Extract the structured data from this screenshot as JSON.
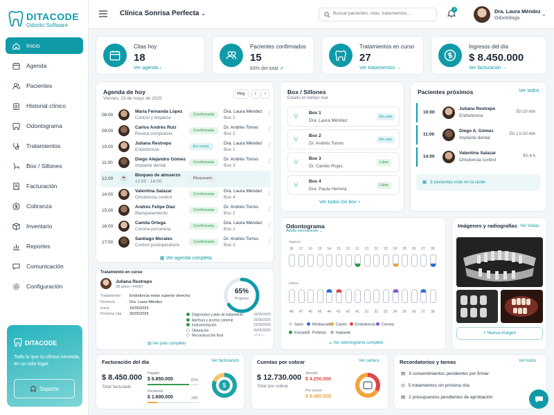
{
  "brand": {
    "name": "DITACODE",
    "sub": "Odonto Software"
  },
  "nav": [
    "Inicio",
    "Agenda",
    "Pacientes",
    "Historial clínico",
    "Odontograma",
    "Tratamientos",
    "Box / Sillones",
    "Facturación",
    "Cobranza",
    "Inventario",
    "Reportes",
    "Comunicación",
    "Configuración"
  ],
  "promo": {
    "name": "DITACODE",
    "text": "Todo lo que tu clínica necesita, en un solo lugar.",
    "button": "Soporte"
  },
  "header": {
    "clinic": "Clínica Sonrisa Perfecta",
    "search_placeholder": "Buscar pacientes, citas, tratamientos...",
    "badge": "3",
    "user": "Dra. Laura Méndez",
    "role": "Odontóloga"
  },
  "kpis": [
    {
      "title": "Citas hoy",
      "value": "18",
      "link": "Ver agenda",
      "arrow": "›"
    },
    {
      "title": "Pacientes confirmados",
      "value": "15",
      "link": "83% del total",
      "arrow": "↗"
    },
    {
      "title": "Tratamientos en curso",
      "value": "27",
      "link": "Ver tratamientos",
      "arrow": "→"
    },
    {
      "title": "Ingresos del día",
      "value": "$ 8.450.000",
      "link": "Ver facturación",
      "arrow": "→"
    }
  ],
  "agenda": {
    "title": "Agenda de hoy",
    "date": "Viernes, 23 de mayo de 2025",
    "today": "Hoy",
    "link": "Ver agenda completa",
    "rows": [
      {
        "time": "08:00",
        "name": "María Fernanda López",
        "proc": "Control y limpieza",
        "status": "Confirmada",
        "doctor": "Dra. Laura Méndez",
        "box": "Box 1"
      },
      {
        "time": "09:00",
        "name": "Carlos Andrés Ruiz",
        "proc": "Resina compuesta",
        "status": "Confirmada",
        "doctor": "Dr. Andrés Torres",
        "box": "Box 2"
      },
      {
        "time": "10:00",
        "name": "Juliana Restrepo",
        "proc": "Endodoncia",
        "status": "En curso",
        "doctor": "Dra. Laura Méndez",
        "box": "Box 1"
      },
      {
        "time": "11:00",
        "name": "Diego Alejandro Gómez",
        "proc": "Implante dental",
        "status": "Confirmada",
        "doctor": "Dr. Andrés Torres",
        "box": "Box 3"
      },
      {
        "time": "12:00",
        "name": "Bloqueo de almuerzo",
        "proc": "12:00 - 14:00",
        "status": "Bloqueado",
        "doctor": "",
        "box": ""
      },
      {
        "time": "14:00",
        "name": "Valentina Salazar",
        "proc": "Ortodoncia control",
        "status": "Confirmada",
        "doctor": "Dra. Laura Méndez",
        "box": "Box 4"
      },
      {
        "time": "15:00",
        "name": "Andrés Felipe Díaz",
        "proc": "Blanqueamiento",
        "status": "Confirmada",
        "doctor": "Dr. Andrés Torres",
        "box": "Box 2"
      },
      {
        "time": "16:00",
        "name": "Camila Ortega",
        "proc": "Corona porcelana",
        "status": "Confirmada",
        "doctor": "Dra. Laura Méndez",
        "box": "Box 1"
      },
      {
        "time": "17:00",
        "name": "Santiago Morales",
        "proc": "Control postoperatorio",
        "status": "Confirmada",
        "doctor": "Dr. Andrés Torres",
        "box": "Box 3"
      }
    ]
  },
  "boxes": {
    "title": "Box / Sillones",
    "sub": "Estado en tiempo real",
    "link": "Ver todos los box",
    "items": [
      {
        "name": "Box 1",
        "doctor": "Dra. Laura Méndez",
        "status": "En uso"
      },
      {
        "name": "Box 2",
        "doctor": "Dr. Andrés Torres",
        "status": "En uso"
      },
      {
        "name": "Box 3",
        "doctor": "Dr. Camilo Rojas",
        "status": "Libre"
      },
      {
        "name": "Box 4",
        "doctor": "Dra. Paula Herrera",
        "status": "Libre"
      }
    ]
  },
  "upcoming": {
    "title": "Pacientes próximos",
    "link": "Ver todos",
    "more": "3 pacientes más en la tarde",
    "items": [
      {
        "time": "10:00",
        "name": "Juliana Restrepo",
        "proc": "Endodoncia",
        "eta": "En 10 min"
      },
      {
        "time": "11:00",
        "name": "Diego A. Gómez",
        "proc": "Implante dental",
        "eta": "En 1 h 10 min"
      },
      {
        "time": "14:00",
        "name": "Valentina Salazar",
        "proc": "Ortodoncia control",
        "eta": "En 4 h"
      }
    ]
  },
  "treatment": {
    "title": "Tratamiento en curso",
    "name": "Juliana Restrepo",
    "meta": "28 años • #4587",
    "labels": [
      "Tratamiento",
      "Doctor/a",
      "Inicio",
      "Próxima cita"
    ],
    "values": [
      "Endodoncia molar superior derecha",
      "Dra. Laura Méndez",
      "16/05/2025",
      "30/05/2025"
    ],
    "progress": 65,
    "progress_text": "65%",
    "progress_label": "Progreso",
    "link": "Ver plan completo",
    "steps": [
      {
        "label": "Diagnóstico y plan de tratamiento",
        "date": "16/05/2025",
        "done": true
      },
      {
        "label": "Apertura y acceso cameral",
        "date": "16/05/2025",
        "done": true
      },
      {
        "label": "Instrumentación",
        "date": "23/05/2025",
        "done": true
      },
      {
        "label": "Obturación",
        "date": "30/05/2025",
        "done": false
      },
      {
        "label": "Reconstrucción final",
        "date": "--/--/----",
        "done": false
      }
    ]
  },
  "odontogram": {
    "title": "Odontograma",
    "sub": "Adulto permanente",
    "upper": "Superior",
    "lower": "Inferior",
    "link": "Ver odontograma completo",
    "upper_nums": [
      "18",
      "17",
      "16",
      "15",
      "14",
      "13",
      "12",
      "11",
      "21",
      "22",
      "23",
      "24",
      "25",
      "26",
      "27",
      "28"
    ],
    "lower_nums": [
      "48",
      "47",
      "46",
      "45",
      "44",
      "43",
      "42",
      "41",
      "31",
      "32",
      "33",
      "34",
      "35",
      "36",
      "37",
      "38"
    ],
    "legend": [
      {
        "label": "Sano",
        "color": "#cfd8df"
      },
      {
        "label": "Restaurado",
        "color": "#2f6fd6"
      },
      {
        "label": "Caries",
        "color": "#f2a33a"
      },
      {
        "label": "Endodoncia",
        "color": "#e04848"
      },
      {
        "label": "Corona",
        "color": "#8a55d0"
      },
      {
        "label": "Extraído",
        "color": "#2e9a4c"
      },
      {
        "label": "Prótesis",
        "color": "#b8c3cc"
      },
      {
        "label": "Implante",
        "color": "#a9b4be"
      }
    ]
  },
  "images": {
    "title": "Imágenes y radiografías",
    "link": "Ver todas",
    "button": "Nueva imagen"
  },
  "billing": {
    "title": "Facturación del día",
    "link": "Ver facturación",
    "value": "$ 8.450.000",
    "label": "Total facturado",
    "paid_label": "Pagado",
    "paid": "$ 6.850.000",
    "paid_pct": "81%",
    "paid_fill": 81,
    "pend_label": "Pendiente",
    "pend": "$ 1.600.000",
    "pend_pct": "19%",
    "pend_fill": 19,
    "donut": 81
  },
  "receivables": {
    "title": "Cuentas por cobrar",
    "link": "Ver cartera",
    "value": "$ 12.730.000",
    "label": "Total por cobrar",
    "due_label": "Vencido",
    "due": "$ 4.250.000",
    "upcoming_label": "Por vencer",
    "upcoming": "$ 8.480.000",
    "donut": 33
  },
  "reminders": {
    "title": "Recordatorios y tareas",
    "link": "Ver todos",
    "items": [
      "3 consentimientos pendientes por firmar",
      "5 tratamientos sin próxima cita",
      "2 presupuestos pendientes de aprobación"
    ]
  },
  "colors": {
    "accent": "#0f9aa8",
    "success": "#2e9a4c",
    "danger": "#e04848",
    "warning": "#f2a33a"
  }
}
